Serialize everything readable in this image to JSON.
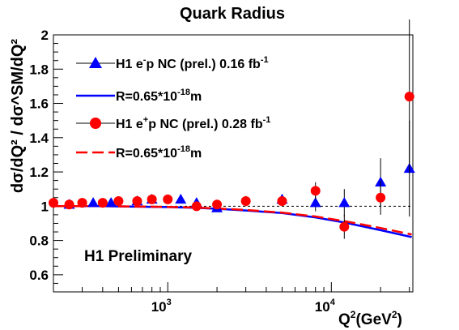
{
  "chart_data": {
    "type": "scatter",
    "title": "Quark Radius",
    "xlabel_main": "Q",
    "xlabel_sup": "2",
    "xlabel_unit_pre": "(GeV",
    "xlabel_unit_sup": "2",
    "xlabel_unit_post": ")",
    "ylabel": "dσ/dQ² / dσ^SM/dQ²",
    "ylim": [
      0.5,
      2.0
    ],
    "xlim": [
      200,
      31500
    ],
    "x_scale": "log",
    "y_ticks": [
      "0.6",
      "0.8",
      "1",
      "1.2",
      "1.4",
      "1.6",
      "1.8",
      "2"
    ],
    "x_tick_labels": [
      {
        "value": 1000,
        "base": "10",
        "exp": "3"
      },
      {
        "value": 10000,
        "base": "10",
        "exp": "4"
      }
    ],
    "reference_line": 1.0,
    "annotation": "H1 Preliminary",
    "legend_position": "top-left",
    "legend": [
      {
        "pre": "H1 e",
        "sup": "-",
        "post": "p NC (prel.) 0.16 fb",
        "sup2": "-1",
        "marker": "triangle",
        "color": "#0000ff"
      },
      {
        "pre": "R=0.65*10",
        "sup": "-18",
        "post": "m",
        "sup2": "",
        "marker": "line",
        "color": "#0000ff"
      },
      {
        "pre": "H1 e",
        "sup": "+",
        "post": "p NC (prel.) 0.28 fb",
        "sup2": "-1",
        "marker": "circle",
        "color": "#ff0000"
      },
      {
        "pre": "R=0.65*10",
        "sup": "-18",
        "post": "m",
        "sup2": "",
        "marker": "dashed",
        "color": "#ff0000"
      }
    ],
    "series": [
      {
        "name": "H1 e-p NC (prel.) 0.16 fb-1",
        "marker": "triangle",
        "color": "#0000ff",
        "points": [
          {
            "x": 250,
            "y": 1.01,
            "err": 0.01
          },
          {
            "x": 350,
            "y": 1.02,
            "err": 0.01
          },
          {
            "x": 450,
            "y": 1.02,
            "err": 0.01
          },
          {
            "x": 650,
            "y": 1.03,
            "err": 0.01
          },
          {
            "x": 800,
            "y": 1.04,
            "err": 0.015
          },
          {
            "x": 1200,
            "y": 1.04,
            "err": 0.02
          },
          {
            "x": 1500,
            "y": 1.02,
            "err": 0.02
          },
          {
            "x": 2000,
            "y": 0.99,
            "err": 0.02
          },
          {
            "x": 5000,
            "y": 1.04,
            "err": 0.03
          },
          {
            "x": 8000,
            "y": 1.02,
            "err": 0.05
          },
          {
            "x": 12000,
            "y": 1.02,
            "err": 0.08
          },
          {
            "x": 20000,
            "y": 1.14,
            "err": 0.14
          },
          {
            "x": 30000,
            "y": 1.22,
            "err": 0.28
          }
        ]
      },
      {
        "name": "H1 e+p NC (prel.) 0.28 fb-1",
        "marker": "circle",
        "color": "#ff0000",
        "points": [
          {
            "x": 200,
            "y": 1.02,
            "err": 0.01
          },
          {
            "x": 250,
            "y": 1.01,
            "err": 0.01
          },
          {
            "x": 300,
            "y": 1.02,
            "err": 0.01
          },
          {
            "x": 400,
            "y": 1.02,
            "err": 0.01
          },
          {
            "x": 500,
            "y": 1.03,
            "err": 0.01
          },
          {
            "x": 650,
            "y": 1.03,
            "err": 0.015
          },
          {
            "x": 800,
            "y": 1.04,
            "err": 0.015
          },
          {
            "x": 1000,
            "y": 1.04,
            "err": 0.02
          },
          {
            "x": 1500,
            "y": 1.0,
            "err": 0.02
          },
          {
            "x": 2000,
            "y": 1.01,
            "err": 0.02
          },
          {
            "x": 3000,
            "y": 1.03,
            "err": 0.03
          },
          {
            "x": 5000,
            "y": 1.03,
            "err": 0.03
          },
          {
            "x": 8000,
            "y": 1.09,
            "err": 0.05
          },
          {
            "x": 12000,
            "y": 0.88,
            "err": 0.07
          },
          {
            "x": 20000,
            "y": 1.05,
            "err": 0.1
          },
          {
            "x": 30000,
            "y": 1.64,
            "err": 0.45
          }
        ]
      }
    ],
    "curves": [
      {
        "name": "R=0.65*10-18m",
        "style": "solid",
        "color": "#0000ff",
        "points": [
          [
            200,
            1.0
          ],
          [
            400,
            1.0
          ],
          [
            700,
            0.997
          ],
          [
            1000,
            0.995
          ],
          [
            1500,
            0.99
          ],
          [
            2000,
            0.985
          ],
          [
            3000,
            0.975
          ],
          [
            5000,
            0.96
          ],
          [
            8000,
            0.935
          ],
          [
            12000,
            0.905
          ],
          [
            20000,
            0.86
          ],
          [
            31000,
            0.82
          ]
        ]
      },
      {
        "name": "R=0.65*10-18m",
        "style": "dashed",
        "color": "#ff0000",
        "points": [
          [
            200,
            1.0
          ],
          [
            400,
            1.0
          ],
          [
            700,
            0.998
          ],
          [
            1000,
            0.996
          ],
          [
            1500,
            0.992
          ],
          [
            2000,
            0.987
          ],
          [
            3000,
            0.978
          ],
          [
            5000,
            0.963
          ],
          [
            8000,
            0.94
          ],
          [
            12000,
            0.913
          ],
          [
            20000,
            0.873
          ],
          [
            31000,
            0.835
          ]
        ]
      }
    ]
  }
}
